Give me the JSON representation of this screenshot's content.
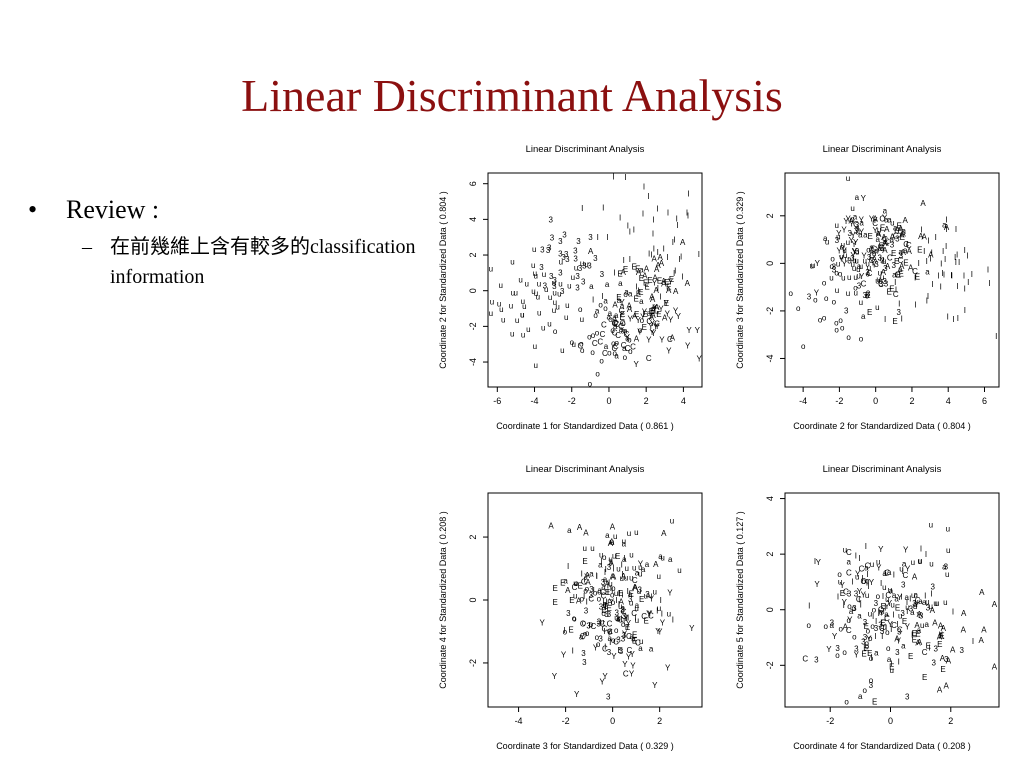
{
  "slide": {
    "title": "Linear Discriminant Analysis",
    "bullet": "Review :",
    "bullet_marker": "•",
    "sub_marker": "–",
    "sub_text": "在前幾維上含有較多的classification information"
  },
  "colors": {
    "title": "#8b1010",
    "ink": "#000000"
  },
  "chart_data": [
    {
      "type": "scatter",
      "title": "Linear Discriminant Analysis",
      "xlabel": "Coordinate 1 for Standardized Data ( 0.861 )",
      "ylabel": "Coordinate 2 for Standardized Data ( 0.804 )",
      "xlim": [
        -6.5,
        5.0
      ],
      "ylim": [
        -5.4,
        6.6
      ],
      "xticks": [
        -6,
        -4,
        -2,
        0,
        2,
        4
      ],
      "yticks": [
        -4,
        -2,
        0,
        2,
        4,
        6
      ],
      "clusters": [
        {
          "label": "u",
          "cx": -3.5,
          "cy": -0.5,
          "sx": 1.4,
          "sy": 1.4,
          "n": 55
        },
        {
          "label": "3",
          "cx": -2.5,
          "cy": 1.5,
          "sx": 1.0,
          "sy": 1.0,
          "n": 30
        },
        {
          "label": "I",
          "cx": 2.0,
          "cy": 2.5,
          "sx": 1.5,
          "sy": 2.0,
          "n": 45
        },
        {
          "label": "E",
          "cx": 1.8,
          "cy": 0.0,
          "sx": 1.2,
          "sy": 1.2,
          "n": 25
        },
        {
          "label": "A",
          "cx": 2.5,
          "cy": 0.5,
          "sx": 1.0,
          "sy": 1.5,
          "n": 30
        },
        {
          "label": "Y",
          "cx": 2.5,
          "cy": -1.8,
          "sx": 1.0,
          "sy": 1.0,
          "n": 30
        },
        {
          "label": "C",
          "cx": 0.5,
          "cy": -2.5,
          "sx": 1.0,
          "sy": 0.8,
          "n": 25
        },
        {
          "label": "o",
          "cx": 0.0,
          "cy": -2.5,
          "sx": 1.0,
          "sy": 1.0,
          "n": 30
        },
        {
          "label": "a",
          "cx": 0.8,
          "cy": -1.0,
          "sx": 1.0,
          "sy": 1.0,
          "n": 25
        }
      ]
    },
    {
      "type": "scatter",
      "title": "Linear Discriminant Analysis",
      "xlabel": "Coordinate 2 for Standardized Data ( 0.804 )",
      "ylabel": "Coordinate 3 for Standardized Data ( 0.329 )",
      "xlim": [
        -5.0,
        6.8
      ],
      "ylim": [
        -5.2,
        3.8
      ],
      "xticks": [
        -4,
        -2,
        0,
        2,
        4,
        6
      ],
      "yticks": [
        -4,
        -2,
        0,
        2
      ],
      "clusters": [
        {
          "label": "I",
          "cx": 3.5,
          "cy": -0.5,
          "sx": 1.5,
          "sy": 1.0,
          "n": 50
        },
        {
          "label": "u",
          "cx": -1.0,
          "cy": 0.0,
          "sx": 1.2,
          "sy": 1.1,
          "n": 45
        },
        {
          "label": "3",
          "cx": -0.5,
          "cy": -0.5,
          "sx": 1.2,
          "sy": 1.0,
          "n": 30
        },
        {
          "label": "Y",
          "cx": -1.0,
          "cy": 0.8,
          "sx": 1.0,
          "sy": 0.8,
          "n": 30
        },
        {
          "label": "A",
          "cx": 1.5,
          "cy": 1.0,
          "sx": 1.0,
          "sy": 0.8,
          "n": 25
        },
        {
          "label": "o",
          "cx": -2.0,
          "cy": -1.0,
          "sx": 1.2,
          "sy": 1.2,
          "n": 25
        },
        {
          "label": "E",
          "cx": 1.0,
          "cy": 0.0,
          "sx": 1.0,
          "sy": 1.0,
          "n": 20
        },
        {
          "label": "a",
          "cx": 0.0,
          "cy": 1.0,
          "sx": 1.2,
          "sy": 0.8,
          "n": 25
        },
        {
          "label": "C",
          "cx": 0.5,
          "cy": 0.5,
          "sx": 1.0,
          "sy": 0.8,
          "n": 20
        }
      ]
    },
    {
      "type": "scatter",
      "title": "Linear Discriminant Analysis",
      "xlabel": "Coordinate 3 for Standardized Data ( 0.329 )",
      "ylabel": "Coordinate 4 for Standardized Data ( 0.208 )",
      "xlim": [
        -5.3,
        3.8
      ],
      "ylim": [
        -3.4,
        3.4
      ],
      "xticks": [
        -4,
        -2,
        0,
        2
      ],
      "yticks": [
        -2,
        0,
        2
      ],
      "clusters": [
        {
          "label": "u",
          "cx": 0.5,
          "cy": 0.5,
          "sx": 1.0,
          "sy": 1.0,
          "n": 40
        },
        {
          "label": "I",
          "cx": 0.0,
          "cy": 0.0,
          "sx": 1.2,
          "sy": 1.0,
          "n": 45
        },
        {
          "label": "3",
          "cx": 0.0,
          "cy": -0.5,
          "sx": 1.0,
          "sy": 0.9,
          "n": 30
        },
        {
          "label": "Y",
          "cx": 0.5,
          "cy": -1.0,
          "sx": 1.2,
          "sy": 1.2,
          "n": 30
        },
        {
          "label": "A",
          "cx": 0.0,
          "cy": 1.5,
          "sx": 1.0,
          "sy": 0.8,
          "n": 20
        },
        {
          "label": "o",
          "cx": -1.0,
          "cy": -0.5,
          "sx": 1.0,
          "sy": 0.8,
          "n": 25
        },
        {
          "label": "C",
          "cx": -0.5,
          "cy": -0.8,
          "sx": 0.9,
          "sy": 0.8,
          "n": 25
        },
        {
          "label": "a",
          "cx": 0.0,
          "cy": 0.3,
          "sx": 1.1,
          "sy": 1.0,
          "n": 25
        },
        {
          "label": "E",
          "cx": -0.5,
          "cy": 0.0,
          "sx": 1.0,
          "sy": 1.0,
          "n": 20
        }
      ]
    },
    {
      "type": "scatter",
      "title": "Linear Discriminant Analysis",
      "xlabel": "Coordinate 4 for Standardized Data ( 0.208 )",
      "ylabel": "Coordinate 5 for Standardized Data ( 0.127 )",
      "xlim": [
        -3.5,
        3.6
      ],
      "ylim": [
        -3.5,
        4.2
      ],
      "xticks": [
        -2,
        0,
        2
      ],
      "yticks": [
        -2,
        0,
        2,
        4
      ],
      "clusters": [
        {
          "label": "u",
          "cx": 0.5,
          "cy": 0.5,
          "sx": 1.0,
          "sy": 1.2,
          "n": 35
        },
        {
          "label": "I",
          "cx": 0.0,
          "cy": 0.0,
          "sx": 1.2,
          "sy": 1.2,
          "n": 45
        },
        {
          "label": "3",
          "cx": 0.0,
          "cy": -0.5,
          "sx": 1.1,
          "sy": 1.0,
          "n": 30
        },
        {
          "label": "Y",
          "cx": -0.5,
          "cy": 0.5,
          "sx": 1.0,
          "sy": 1.0,
          "n": 25
        },
        {
          "label": "A",
          "cx": 1.5,
          "cy": -1.0,
          "sx": 1.0,
          "sy": 1.0,
          "n": 25
        },
        {
          "label": "o",
          "cx": -1.0,
          "cy": -0.5,
          "sx": 1.0,
          "sy": 1.0,
          "n": 25
        },
        {
          "label": "E",
          "cx": 0.0,
          "cy": -1.2,
          "sx": 1.0,
          "sy": 0.8,
          "n": 20
        },
        {
          "label": "a",
          "cx": 0.5,
          "cy": 0.0,
          "sx": 1.1,
          "sy": 1.1,
          "n": 25
        },
        {
          "label": "C",
          "cx": 0.0,
          "cy": 0.0,
          "sx": 1.0,
          "sy": 1.0,
          "n": 20
        }
      ]
    }
  ]
}
